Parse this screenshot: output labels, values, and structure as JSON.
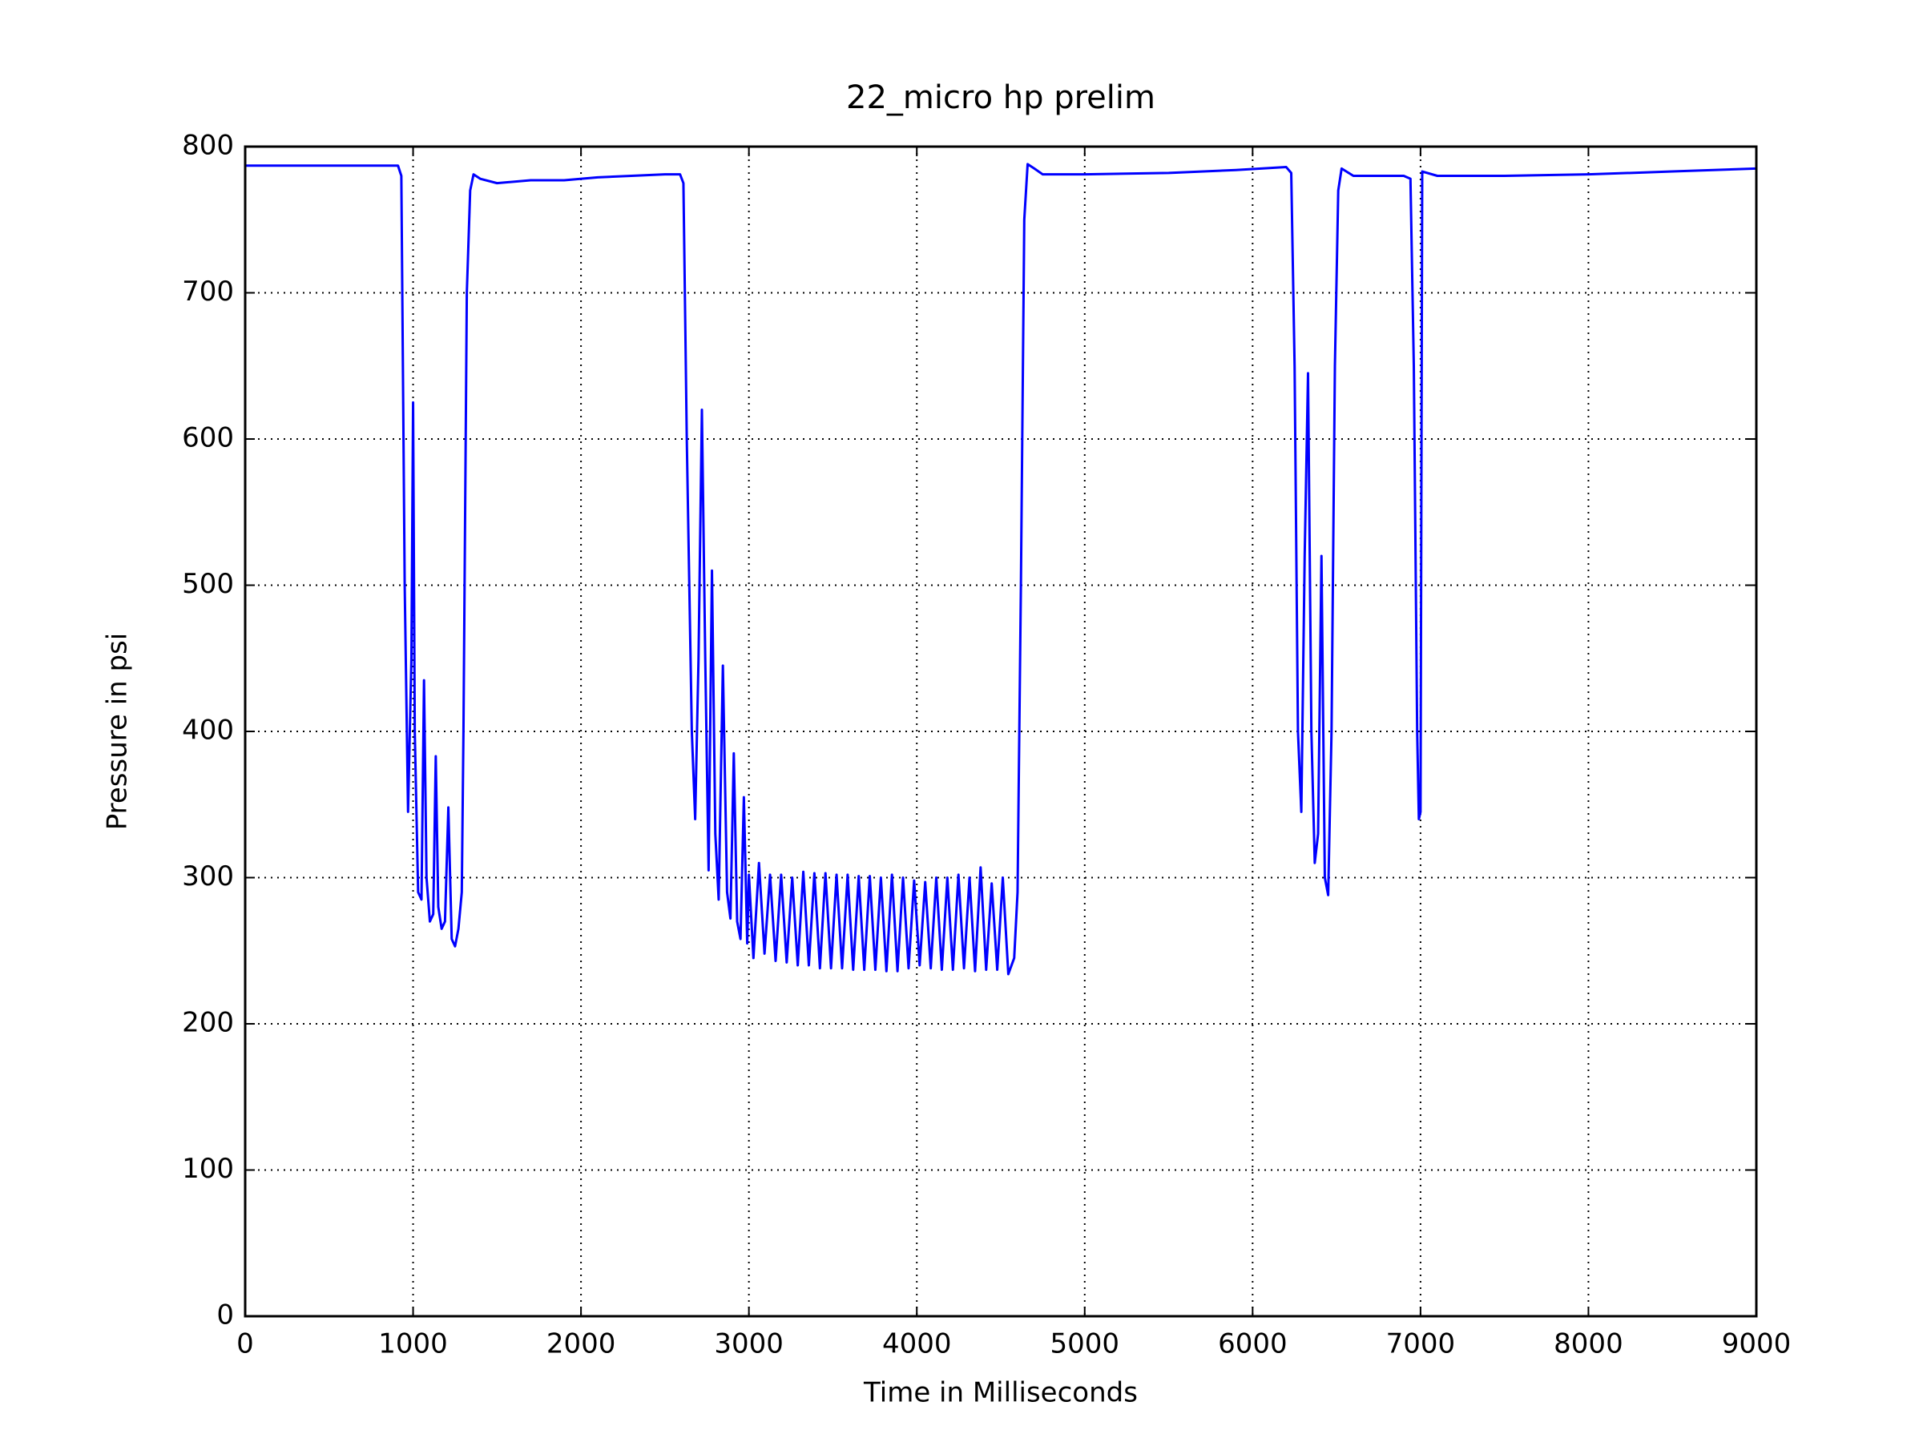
{
  "chart_data": {
    "type": "line",
    "title": "22_micro hp prelim",
    "x_label": "Time in Milliseconds",
    "y_label": "Pressure in psi",
    "xlim": [
      0,
      9000
    ],
    "xticks": [
      0,
      1000,
      2000,
      3000,
      4000,
      5000,
      6000,
      7000,
      8000,
      9000
    ],
    "ylim": [
      0,
      800
    ],
    "yticks": [
      0,
      100,
      200,
      300,
      400,
      500,
      600,
      700,
      800
    ],
    "grid": true,
    "x": [
      0,
      500,
      910,
      930,
      950,
      970,
      990,
      1000,
      1010,
      1030,
      1050,
      1065,
      1080,
      1100,
      1120,
      1135,
      1150,
      1170,
      1190,
      1210,
      1230,
      1250,
      1270,
      1290,
      1300,
      1320,
      1340,
      1360,
      1400,
      1500,
      1700,
      1900,
      2100,
      2300,
      2500,
      2590,
      2610,
      2630,
      2660,
      2680,
      2700,
      2720,
      2740,
      2760,
      2780,
      2800,
      2820,
      2845,
      2870,
      2890,
      2910,
      2930,
      2950,
      2970,
      2990,
      3000,
      3027,
      3060,
      3093,
      3126,
      3159,
      3192,
      3225,
      3258,
      3291,
      3324,
      3357,
      3390,
      3423,
      3456,
      3489,
      3522,
      3555,
      3588,
      3621,
      3654,
      3687,
      3720,
      3753,
      3786,
      3819,
      3852,
      3885,
      3918,
      3951,
      3984,
      4017,
      4050,
      4083,
      4116,
      4149,
      4182,
      4215,
      4248,
      4281,
      4314,
      4347,
      4380,
      4413,
      4446,
      4479,
      4512,
      4545,
      4580,
      4600,
      4620,
      4640,
      4660,
      4700,
      4750,
      5000,
      5500,
      5900,
      6200,
      6230,
      6250,
      6270,
      6290,
      6310,
      6330,
      6350,
      6370,
      6390,
      6410,
      6430,
      6450,
      6470,
      6490,
      6510,
      6530,
      6600,
      6900,
      6940,
      6960,
      6980,
      6990,
      7000,
      7010,
      7100,
      7500,
      8000,
      8500,
      9000
    ],
    "series": [
      {
        "name": "pressure",
        "color": "#0000ff",
        "values": [
          787,
          787,
          787,
          780,
          500,
          345,
          450,
          625,
          400,
          290,
          285,
          435,
          300,
          270,
          275,
          383,
          280,
          265,
          270,
          348,
          258,
          253,
          265,
          290,
          400,
          700,
          770,
          781,
          778,
          775,
          777,
          777,
          779,
          780,
          781,
          781,
          775,
          600,
          400,
          340,
          450,
          620,
          450,
          305,
          510,
          330,
          285,
          445,
          290,
          272,
          385,
          270,
          258,
          355,
          255,
          302,
          245,
          310,
          248,
          302,
          243,
          302,
          242,
          300,
          240,
          304,
          240,
          303,
          238,
          303,
          238,
          302,
          238,
          302,
          237,
          301,
          237,
          301,
          237,
          300,
          236,
          302,
          236,
          300,
          238,
          298,
          240,
          297,
          238,
          300,
          237,
          300,
          237,
          302,
          238,
          300,
          236,
          307,
          237,
          296,
          237,
          300,
          234,
          245,
          290,
          500,
          750,
          788,
          785,
          781,
          781,
          782,
          784,
          786,
          782,
          650,
          400,
          345,
          520,
          645,
          400,
          310,
          330,
          520,
          300,
          288,
          400,
          650,
          770,
          785,
          780,
          780,
          778,
          650,
          400,
          340,
          345,
          783,
          780,
          780,
          781,
          783,
          785
        ]
      }
    ]
  }
}
